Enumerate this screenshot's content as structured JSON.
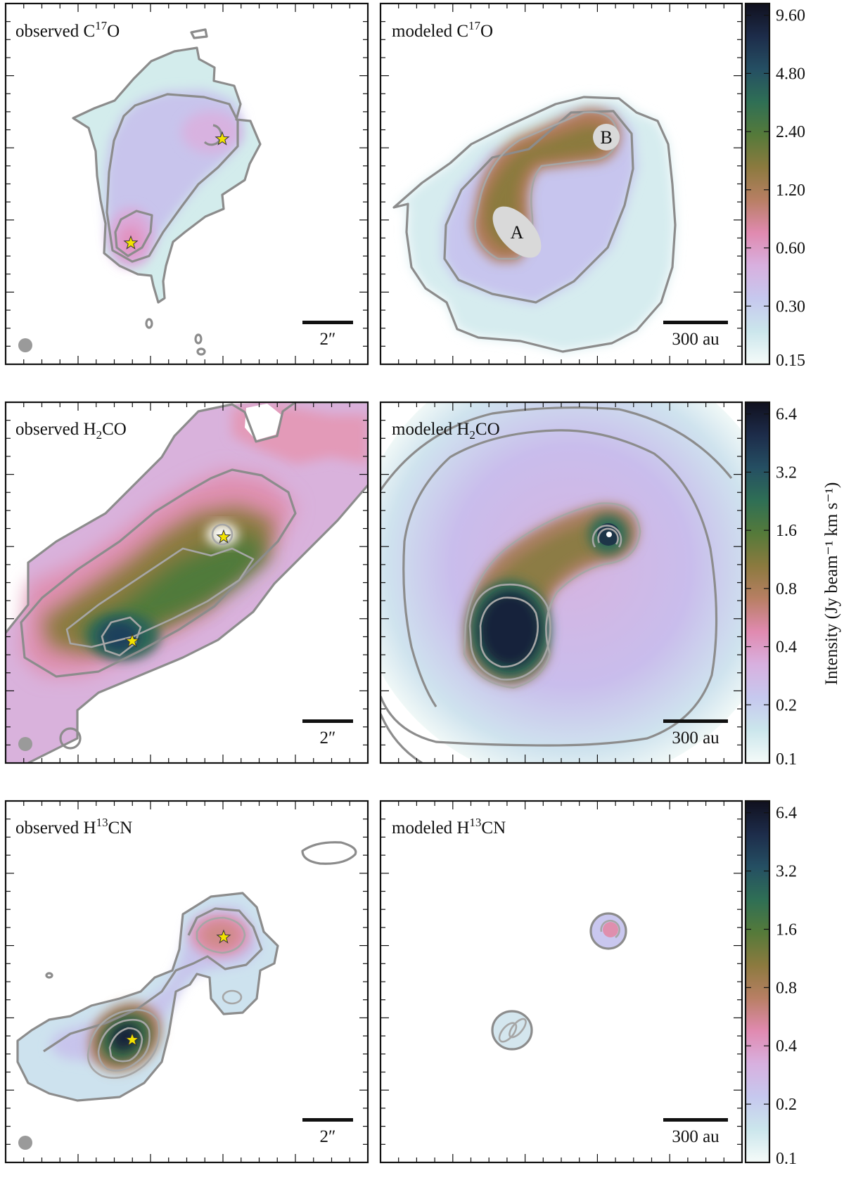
{
  "chart_data": [
    {
      "type": "heatmap",
      "molecule": "C17O",
      "colormap": "cubehelix-like (white → blue → pink → olive → green → dark navy)",
      "colorbar": {
        "ticks": [
          "0.15",
          "0.30",
          "0.60",
          "1.20",
          "2.40",
          "4.80",
          "9.60"
        ],
        "values": [
          0.15,
          0.3,
          0.6,
          1.2,
          2.4,
          4.8,
          9.6
        ],
        "scale": "log"
      },
      "observed": {
        "title_prefix": "observed C",
        "superscript": "17",
        "title_suffix": "O",
        "scale_bar": "2″",
        "beam": true,
        "stars": 2
      },
      "modeled": {
        "title_prefix": "modeled C",
        "superscript": "17",
        "title_suffix": "O",
        "scale_bar": "300 au",
        "source_labels": [
          "A",
          "B"
        ]
      }
    },
    {
      "type": "heatmap",
      "molecule": "H2CO",
      "colorbar": {
        "ticks": [
          "0.1",
          "0.2",
          "0.4",
          "0.8",
          "1.6",
          "3.2",
          "6.4"
        ],
        "values": [
          0.1,
          0.2,
          0.4,
          0.8,
          1.6,
          3.2,
          6.4
        ],
        "scale": "log",
        "label": "Intensity (Jy beam⁻¹ km s⁻¹)"
      },
      "observed": {
        "title_prefix": "observed H",
        "subscript": "2",
        "title_suffix": "CO",
        "scale_bar": "2″",
        "beam": true,
        "stars": 2
      },
      "modeled": {
        "title_prefix": "modeled H",
        "subscript": "2",
        "title_suffix": "CO",
        "scale_bar": "300 au"
      }
    },
    {
      "type": "heatmap",
      "molecule": "H13CN",
      "colorbar": {
        "ticks": [
          "0.1",
          "0.2",
          "0.4",
          "0.8",
          "1.6",
          "3.2",
          "6.4"
        ],
        "values": [
          0.1,
          0.2,
          0.4,
          0.8,
          1.6,
          3.2,
          6.4
        ],
        "scale": "log"
      },
      "observed": {
        "title_prefix": "observed H",
        "superscript": "13",
        "title_suffix": "CN",
        "scale_bar": "2″",
        "beam": true,
        "stars": 2
      },
      "modeled": {
        "title_prefix": "modeled H",
        "superscript": "13",
        "title_suffix": "CN",
        "scale_bar": "300 au"
      }
    }
  ],
  "colors": {
    "cmap": [
      "#f5fbf9",
      "#cbe6ec",
      "#c6c8ee",
      "#d8b0df",
      "#e08ab0",
      "#b87f64",
      "#8c7a3f",
      "#557a3a",
      "#2f6f55",
      "#254f63",
      "#1d2c4a",
      "#10101e"
    ],
    "contour": "#8c8c8c",
    "star": "#f2e200"
  },
  "labels": {
    "r0_obs_prefix": "observed C",
    "r0_obs_sup": "17",
    "r0_obs_suffix": "O",
    "r0_mod_prefix": "modeled C",
    "r0_mod_sup": "17",
    "r0_mod_suffix": "O",
    "r1_obs_prefix": "observed H",
    "r1_obs_sub": "2",
    "r1_obs_suffix": "CO",
    "r1_mod_prefix": "modeled H",
    "r1_mod_sub": "2",
    "r1_mod_suffix": "CO",
    "r2_obs_prefix": "observed H",
    "r2_obs_sup": "13",
    "r2_obs_suffix": "CN",
    "r2_mod_prefix": "modeled H",
    "r2_mod_sup": "13",
    "r2_mod_suffix": "CN",
    "scale_obs": "2″",
    "scale_mod": "300 au",
    "source_a": "A",
    "source_b": "B",
    "cbar_label": "Intensity (Jy beam⁻¹ km s⁻¹)"
  }
}
